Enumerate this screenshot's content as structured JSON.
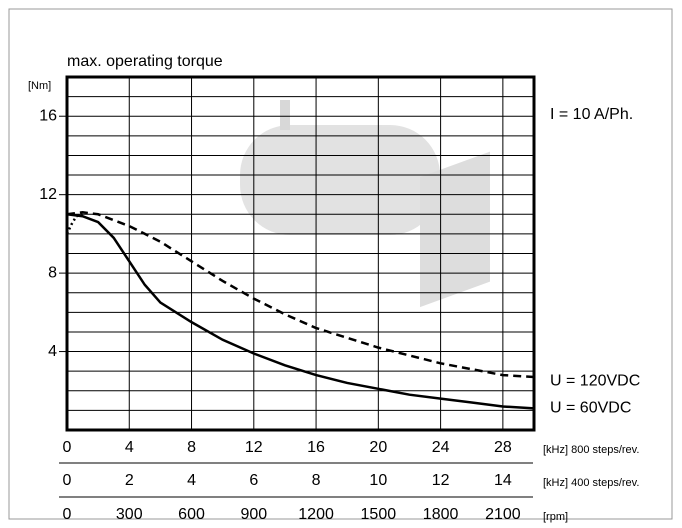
{
  "chart_data": {
    "type": "line",
    "title": "max. operating torque",
    "y_unit": "[Nm]",
    "annotation": "I = 10 A/Ph.",
    "ylim": [
      0,
      18
    ],
    "yticks": [
      4,
      8,
      12,
      16
    ],
    "ygrid": [
      1,
      2,
      3,
      4,
      5,
      6,
      7,
      8,
      9,
      10,
      11,
      12,
      13,
      14,
      15,
      16,
      17
    ],
    "x_axes": [
      {
        "label": "[kHz] 800 steps/rev.",
        "lim": [
          0,
          30
        ],
        "ticks": [
          0,
          4,
          8,
          12,
          16,
          20,
          24,
          28
        ]
      },
      {
        "label": "[kHz] 400 steps/rev.",
        "lim": [
          0,
          15
        ],
        "ticks": [
          0,
          2,
          4,
          6,
          8,
          10,
          12,
          14
        ]
      },
      {
        "label": "[rpm]",
        "lim": [
          0,
          2250
        ],
        "ticks": [
          0,
          300,
          600,
          900,
          1200,
          1500,
          1800,
          2100
        ]
      }
    ],
    "series": [
      {
        "name": "U = 120VDC",
        "color": "#000000",
        "dash": "dashed",
        "x": [
          0,
          1,
          2,
          4,
          6,
          8,
          10,
          12,
          14,
          16,
          18,
          20,
          22,
          24,
          26,
          28,
          30
        ],
        "values": [
          11,
          11.1,
          11,
          10.4,
          9.6,
          8.6,
          7.6,
          6.7,
          5.9,
          5.2,
          4.7,
          4.2,
          3.8,
          3.4,
          3.1,
          2.8,
          2.7
        ]
      },
      {
        "name": "U = 60VDC",
        "color": "#000000",
        "dash": "solid",
        "x": [
          0,
          1,
          2,
          3,
          4,
          5,
          6,
          8,
          10,
          12,
          14,
          16,
          18,
          20,
          22,
          24,
          26,
          28,
          30
        ],
        "values": [
          11,
          10.9,
          10.6,
          9.8,
          8.6,
          7.4,
          6.5,
          5.5,
          4.6,
          3.9,
          3.3,
          2.8,
          2.4,
          2.1,
          1.8,
          1.6,
          1.4,
          1.2,
          1.1
        ]
      },
      {
        "color": "#000000",
        "dash": "dotted",
        "x": [
          0,
          0.3,
          0.6,
          1
        ],
        "values": [
          10,
          10.5,
          10.9,
          11
        ]
      }
    ]
  }
}
